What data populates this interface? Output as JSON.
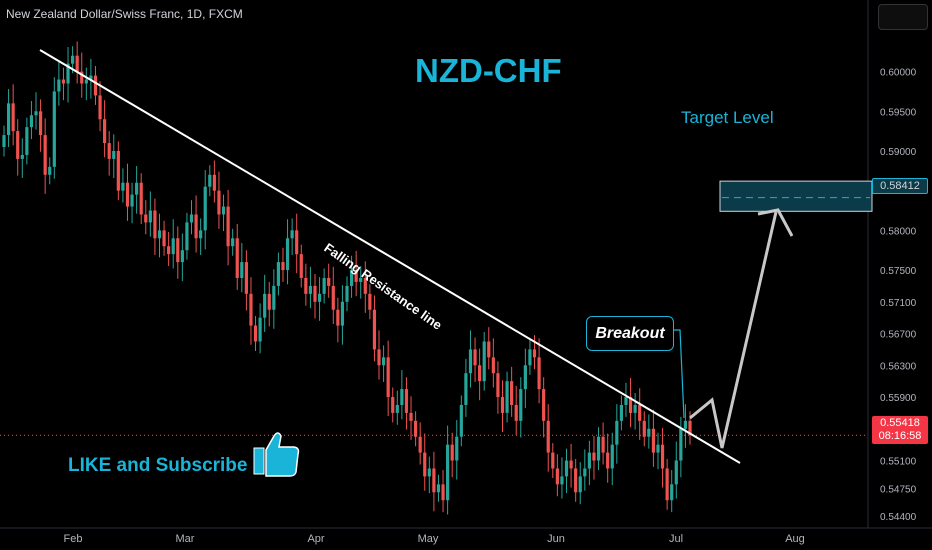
{
  "header": {
    "symbol_title": "New Zealand Dollar/Swiss Franc, 1D, FXCM"
  },
  "annotations": {
    "main_title": "NZD-CHF",
    "target_label": "Target Level",
    "breakout_label": "Breakout",
    "resistance_label": "Falling Resistance line",
    "like_text": "LIKE and Subscribe"
  },
  "price_tags": {
    "target_price": "0.58412",
    "current_price": "0.55418",
    "countdown": "08:16:58"
  },
  "colors": {
    "bull": "#26a69a",
    "bear": "#ef5350",
    "accent": "#19b4d8",
    "target_zone": "#0b3a48"
  },
  "chart_data": {
    "type": "candlestick",
    "ylim": [
      0.5425,
      0.6065
    ],
    "y_ticks": [
      "0.60000",
      "0.59500",
      "0.59000",
      "0.58000",
      "0.57500",
      "0.57100",
      "0.56700",
      "0.56300",
      "0.55900",
      "0.55100",
      "0.54750",
      "0.54400"
    ],
    "x_ticks": [
      "Feb",
      "Mar",
      "Apr",
      "May",
      "Jun",
      "Jul",
      "Aug"
    ],
    "target_level": 0.58412,
    "last_price": 0.55418,
    "closes": [
      0.592,
      0.596,
      0.5925,
      0.589,
      0.5895,
      0.593,
      0.5945,
      0.595,
      0.592,
      0.587,
      0.588,
      0.5975,
      0.599,
      0.5985,
      0.601,
      0.602,
      0.6,
      0.5985,
      0.599,
      0.5995,
      0.597,
      0.594,
      0.591,
      0.589,
      0.59,
      0.585,
      0.586,
      0.583,
      0.5845,
      0.586,
      0.582,
      0.581,
      0.5825,
      0.579,
      0.58,
      0.578,
      0.577,
      0.579,
      0.576,
      0.5775,
      0.581,
      0.582,
      0.579,
      0.58,
      0.5855,
      0.587,
      0.585,
      0.582,
      0.583,
      0.578,
      0.579,
      0.574,
      0.576,
      0.572,
      0.568,
      0.566,
      0.569,
      0.572,
      0.57,
      0.573,
      0.576,
      0.575,
      0.579,
      0.58,
      0.577,
      0.574,
      0.572,
      0.573,
      0.571,
      0.572,
      0.574,
      0.573,
      0.57,
      0.568,
      0.571,
      0.573,
      0.575,
      0.5735,
      0.574,
      0.572,
      0.57,
      0.565,
      0.563,
      0.564,
      0.559,
      0.557,
      0.558,
      0.56,
      0.557,
      0.556,
      0.554,
      0.552,
      0.549,
      0.55,
      0.547,
      0.548,
      0.546,
      0.553,
      0.551,
      0.554,
      0.558,
      0.562,
      0.565,
      0.563,
      0.561,
      0.566,
      0.564,
      0.562,
      0.559,
      0.557,
      0.561,
      0.558,
      0.556,
      0.56,
      0.563,
      0.565,
      0.564,
      0.56,
      0.556,
      0.552,
      0.55,
      0.548,
      0.549,
      0.551,
      0.55,
      0.547,
      0.549,
      0.55,
      0.552,
      0.551,
      0.554,
      0.552,
      0.55,
      0.553,
      0.556,
      0.558,
      0.559,
      0.557,
      0.558,
      0.556,
      0.554,
      0.555,
      0.552,
      0.553,
      0.55,
      0.546,
      0.548,
      0.551,
      0.555,
      0.556,
      0.5542
    ]
  }
}
